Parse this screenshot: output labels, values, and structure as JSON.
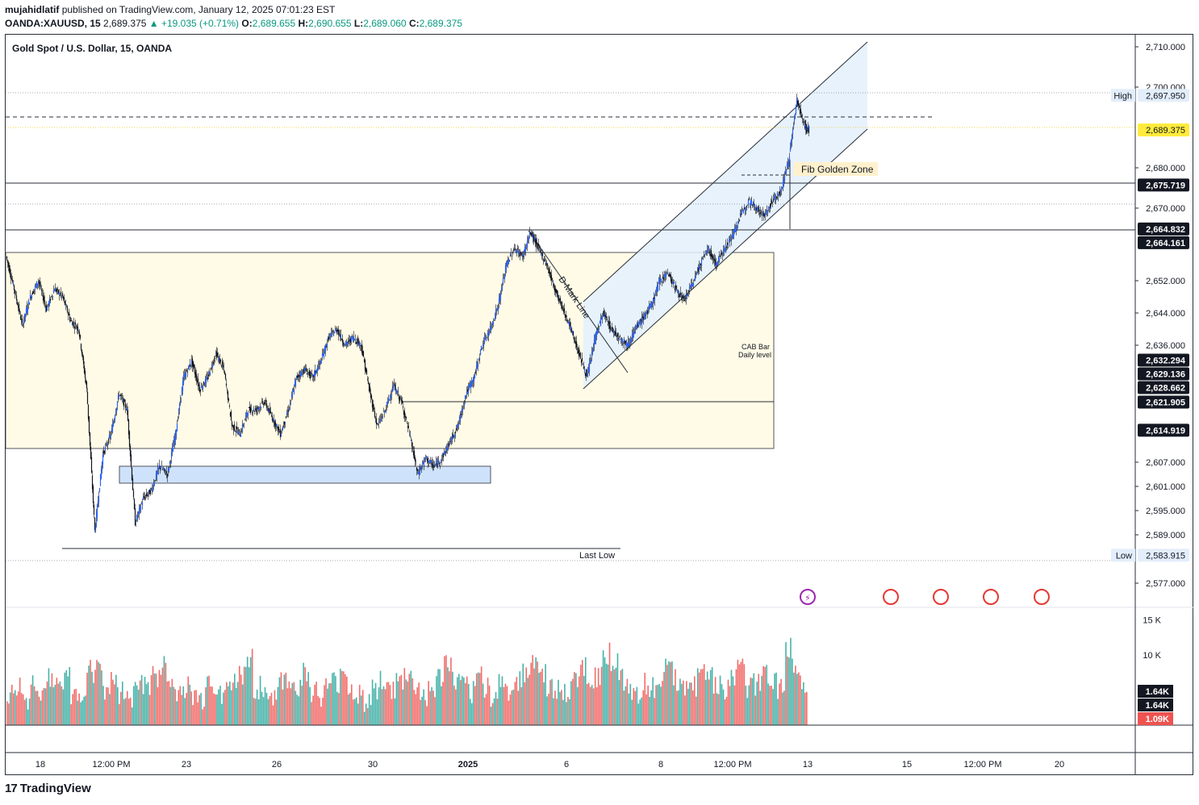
{
  "header": {
    "author": "mujahidlatif",
    "published_text": "published on TradingView.com, January 12, 2025 07:01:23 EST",
    "symbol": "OANDA:XAUUSD, 15",
    "last": "2,689.375",
    "change": "▲ +19.035 (+0.71%)",
    "o_label": "O:",
    "o_val": "2,689.655",
    "h_label": "H:",
    "h_val": "2,690.655",
    "l_label": "L:",
    "l_val": "2,689.060",
    "c_label": "C:",
    "c_val": "2,689.375"
  },
  "chart_title": "Gold Spot / U.S. Dollar, 15, OANDA",
  "footer": {
    "logo": "17",
    "brand": "TradingView"
  },
  "colors": {
    "candle": "#2962ff",
    "vol_up": "#26a69a",
    "vol_down": "#ef5350",
    "zone": "#fffbe6",
    "channel": "#e3f0fd",
    "demand_box": "#cfe2fb",
    "current": "#ffeb3b"
  },
  "chart_data": {
    "type": "candlestick",
    "ylim": [
      2572,
      2713
    ],
    "y_ticks": [
      "2,710.000",
      "2,700.000",
      "2,680.000",
      "2,670.000",
      "2,652.000",
      "2,644.000",
      "2,636.000",
      "2,607.000",
      "2,601.000",
      "2,595.000",
      "2,589.000",
      "2,577.000"
    ],
    "x_ticks": [
      "18",
      "12:00 PM",
      "23",
      "26",
      "30",
      "2025",
      "6",
      "8",
      "12:00 PM",
      "13",
      "15",
      "12:00 PM",
      "20"
    ],
    "price_tags": [
      {
        "label": "2,697.950",
        "value": 2697.95,
        "style": "high",
        "side_label": "High"
      },
      {
        "label": "2,689.375",
        "value": 2689.375,
        "style": "current"
      },
      {
        "label": "2,675.719",
        "value": 2675.719,
        "style": "black"
      },
      {
        "label": "2,664.832",
        "value": 2664.832,
        "style": "black"
      },
      {
        "label": "2,664.161",
        "value": 2664.161,
        "style": "black"
      },
      {
        "label": "2,632.294",
        "value": 2632.294,
        "style": "black"
      },
      {
        "label": "2,629.136",
        "value": 2629.136,
        "style": "black"
      },
      {
        "label": "2,628.662",
        "value": 2628.662,
        "style": "black"
      },
      {
        "label": "2,621.905",
        "value": 2621.905,
        "style": "black"
      },
      {
        "label": "2,614.919",
        "value": 2614.919,
        "style": "black"
      },
      {
        "label": "2,583.915",
        "value": 2583.915,
        "style": "low",
        "side_label": "Low"
      }
    ],
    "annotations": {
      "fib": "Fib Golden Zone",
      "dmark": "D-Mark Line",
      "cab1": "CAB Bar",
      "cab2": "Daily level",
      "lastlow": "Last Low"
    },
    "levels": [
      2675.719,
      2664.5,
      2660.0,
      2621.905,
      2614.919,
      2583.915
    ],
    "price_path": [
      [
        0,
        2658
      ],
      [
        2,
        2650
      ],
      [
        4,
        2641
      ],
      [
        6,
        2648
      ],
      [
        8,
        2652
      ],
      [
        10,
        2645
      ],
      [
        12,
        2650
      ],
      [
        14,
        2648
      ],
      [
        16,
        2642
      ],
      [
        18,
        2640
      ],
      [
        20,
        2625
      ],
      [
        22,
        2590
      ],
      [
        24,
        2609
      ],
      [
        26,
        2614
      ],
      [
        28,
        2624
      ],
      [
        30,
        2620
      ],
      [
        32,
        2592
      ],
      [
        34,
        2598
      ],
      [
        36,
        2600
      ],
      [
        38,
        2606
      ],
      [
        40,
        2604
      ],
      [
        42,
        2614
      ],
      [
        44,
        2628
      ],
      [
        46,
        2632
      ],
      [
        48,
        2625
      ],
      [
        50,
        2628
      ],
      [
        52,
        2634
      ],
      [
        54,
        2630
      ],
      [
        56,
        2616
      ],
      [
        58,
        2614
      ],
      [
        60,
        2620
      ],
      [
        62,
        2620
      ],
      [
        64,
        2622
      ],
      [
        66,
        2618
      ],
      [
        68,
        2614
      ],
      [
        70,
        2620
      ],
      [
        72,
        2628
      ],
      [
        74,
        2630
      ],
      [
        76,
        2628
      ],
      [
        78,
        2632
      ],
      [
        80,
        2638
      ],
      [
        82,
        2640
      ],
      [
        84,
        2636
      ],
      [
        86,
        2638
      ],
      [
        88,
        2636
      ],
      [
        90,
        2625
      ],
      [
        92,
        2616
      ],
      [
        94,
        2620
      ],
      [
        96,
        2626
      ],
      [
        98,
        2622
      ],
      [
        100,
        2614
      ],
      [
        102,
        2604
      ],
      [
        104,
        2608
      ],
      [
        106,
        2606
      ],
      [
        108,
        2608
      ],
      [
        110,
        2612
      ],
      [
        112,
        2616
      ],
      [
        114,
        2624
      ],
      [
        116,
        2628
      ],
      [
        118,
        2636
      ],
      [
        120,
        2640
      ],
      [
        122,
        2646
      ],
      [
        124,
        2656
      ],
      [
        126,
        2660
      ],
      [
        128,
        2658
      ],
      [
        130,
        2664
      ],
      [
        132,
        2660
      ],
      [
        134,
        2656
      ],
      [
        136,
        2650
      ],
      [
        138,
        2645
      ],
      [
        140,
        2640
      ],
      [
        142,
        2634
      ],
      [
        144,
        2628
      ],
      [
        146,
        2638
      ],
      [
        148,
        2644
      ],
      [
        150,
        2640
      ],
      [
        152,
        2638
      ],
      [
        154,
        2636
      ],
      [
        156,
        2640
      ],
      [
        158,
        2643
      ],
      [
        160,
        2646
      ],
      [
        162,
        2652
      ],
      [
        164,
        2654
      ],
      [
        166,
        2650
      ],
      [
        168,
        2647
      ],
      [
        170,
        2651
      ],
      [
        172,
        2656
      ],
      [
        174,
        2660
      ],
      [
        176,
        2656
      ],
      [
        178,
        2660
      ],
      [
        180,
        2663
      ],
      [
        182,
        2668
      ],
      [
        184,
        2672
      ],
      [
        186,
        2670
      ],
      [
        188,
        2668
      ],
      [
        190,
        2672
      ],
      [
        192,
        2674
      ],
      [
        194,
        2682
      ],
      [
        196,
        2697
      ],
      [
        198,
        2690
      ],
      [
        199,
        2689.4
      ]
    ],
    "volume_ylim": [
      0,
      16000
    ],
    "volume_ticks": [
      "15 K",
      "10 K"
    ],
    "volume_tags": [
      {
        "label": "1.64K",
        "value": 1640,
        "style": "black"
      },
      {
        "label": "1.64K",
        "value": 1640,
        "style": "black"
      },
      {
        "label": "1.09K",
        "value": 1090,
        "style": "red"
      }
    ],
    "volume_series": [
      4,
      6,
      3,
      7,
      5,
      9,
      6,
      8,
      4,
      5,
      10,
      12,
      6,
      7,
      5,
      4,
      8,
      6,
      9,
      11,
      7,
      5,
      6,
      4,
      3,
      8,
      6,
      5,
      7,
      9,
      13,
      6,
      5,
      4,
      7,
      8,
      6,
      9,
      5,
      4,
      6,
      7,
      10,
      5,
      4,
      3,
      6,
      8,
      5,
      7,
      9,
      6,
      4,
      5,
      8,
      12,
      7,
      6,
      5,
      9,
      6,
      4,
      7,
      5,
      8,
      10,
      13,
      9,
      6,
      5,
      4,
      7,
      11,
      8,
      9,
      14,
      12,
      8,
      6,
      5,
      7,
      6,
      9,
      10,
      8,
      7,
      6,
      12,
      9,
      7,
      5,
      8,
      11,
      6,
      7,
      9,
      8,
      6,
      15,
      10,
      7
    ]
  }
}
